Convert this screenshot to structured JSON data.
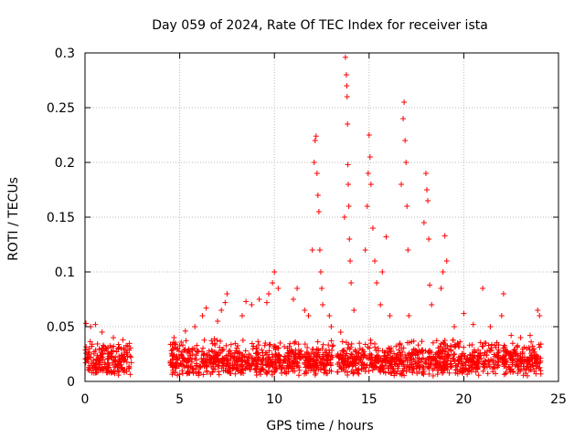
{
  "chart_data": {
    "type": "scatter",
    "title": "Day 059 of 2024, Rate Of TEC Index for receiver ista",
    "xlabel": "GPS time / hours",
    "ylabel": "ROTI / TECUs",
    "xlim": [
      0,
      25
    ],
    "ylim": [
      0,
      0.3
    ],
    "x_ticks": [
      0,
      5,
      10,
      15,
      20,
      25
    ],
    "x_tick_labels": [
      "0",
      "5",
      "10",
      "15",
      "20",
      "25"
    ],
    "y_ticks": [
      0,
      0.05,
      0.1,
      0.15,
      0.2,
      0.25,
      0.3
    ],
    "y_tick_labels": [
      "0",
      "0.05",
      "0.1",
      "0.15",
      "0.2",
      "0.25",
      "0.3"
    ],
    "grid": true,
    "marker": "+",
    "color": "#ff0000",
    "series": [
      {
        "name": "ROTI",
        "coverage_hours": [
          [
            0.0,
            2.45
          ],
          [
            4.5,
            13.1
          ],
          [
            13.3,
            24.1
          ]
        ],
        "baseline_range": [
          0.005,
          0.035
        ],
        "points": [
          [
            0.05,
            0.053
          ],
          [
            0.3,
            0.05
          ],
          [
            0.55,
            0.052
          ],
          [
            0.9,
            0.045
          ],
          [
            1.5,
            0.04
          ],
          [
            2.0,
            0.038
          ],
          [
            4.7,
            0.04
          ],
          [
            5.3,
            0.046
          ],
          [
            5.8,
            0.05
          ],
          [
            6.2,
            0.06
          ],
          [
            6.4,
            0.067
          ],
          [
            7.0,
            0.055
          ],
          [
            7.2,
            0.065
          ],
          [
            7.4,
            0.072
          ],
          [
            7.5,
            0.08
          ],
          [
            8.3,
            0.06
          ],
          [
            8.5,
            0.073
          ],
          [
            8.8,
            0.07
          ],
          [
            9.2,
            0.075
          ],
          [
            9.6,
            0.072
          ],
          [
            9.7,
            0.08
          ],
          [
            9.9,
            0.09
          ],
          [
            10.0,
            0.1
          ],
          [
            10.2,
            0.085
          ],
          [
            11.0,
            0.075
          ],
          [
            11.2,
            0.085
          ],
          [
            11.6,
            0.065
          ],
          [
            11.8,
            0.06
          ],
          [
            12.0,
            0.12
          ],
          [
            12.1,
            0.2
          ],
          [
            12.15,
            0.22
          ],
          [
            12.2,
            0.224
          ],
          [
            12.25,
            0.19
          ],
          [
            12.3,
            0.17
          ],
          [
            12.35,
            0.155
          ],
          [
            12.4,
            0.12
          ],
          [
            12.45,
            0.1
          ],
          [
            12.5,
            0.085
          ],
          [
            12.55,
            0.07
          ],
          [
            12.9,
            0.06
          ],
          [
            13.0,
            0.05
          ],
          [
            13.5,
            0.045
          ],
          [
            13.7,
            0.15
          ],
          [
            13.75,
            0.296
          ],
          [
            13.8,
            0.28
          ],
          [
            13.82,
            0.27
          ],
          [
            13.84,
            0.26
          ],
          [
            13.86,
            0.235
          ],
          [
            13.88,
            0.198
          ],
          [
            13.9,
            0.18
          ],
          [
            13.93,
            0.16
          ],
          [
            13.96,
            0.13
          ],
          [
            14.0,
            0.11
          ],
          [
            14.05,
            0.09
          ],
          [
            14.2,
            0.065
          ],
          [
            14.8,
            0.12
          ],
          [
            14.9,
            0.16
          ],
          [
            14.95,
            0.19
          ],
          [
            15.0,
            0.225
          ],
          [
            15.05,
            0.205
          ],
          [
            15.1,
            0.18
          ],
          [
            15.2,
            0.14
          ],
          [
            15.3,
            0.11
          ],
          [
            15.4,
            0.09
          ],
          [
            15.6,
            0.07
          ],
          [
            15.7,
            0.1
          ],
          [
            15.9,
            0.132
          ],
          [
            16.1,
            0.06
          ],
          [
            16.7,
            0.18
          ],
          [
            16.8,
            0.24
          ],
          [
            16.85,
            0.255
          ],
          [
            16.9,
            0.22
          ],
          [
            16.95,
            0.2
          ],
          [
            17.0,
            0.16
          ],
          [
            17.05,
            0.12
          ],
          [
            17.1,
            0.06
          ],
          [
            17.9,
            0.145
          ],
          [
            18.0,
            0.19
          ],
          [
            18.05,
            0.175
          ],
          [
            18.1,
            0.165
          ],
          [
            18.15,
            0.13
          ],
          [
            18.2,
            0.088
          ],
          [
            18.3,
            0.07
          ],
          [
            18.8,
            0.085
          ],
          [
            18.9,
            0.1
          ],
          [
            19.0,
            0.133
          ],
          [
            19.1,
            0.11
          ],
          [
            19.5,
            0.05
          ],
          [
            20.0,
            0.062
          ],
          [
            20.5,
            0.052
          ],
          [
            21.0,
            0.085
          ],
          [
            21.4,
            0.05
          ],
          [
            22.0,
            0.06
          ],
          [
            22.1,
            0.08
          ],
          [
            22.5,
            0.042
          ],
          [
            23.0,
            0.04
          ],
          [
            23.5,
            0.042
          ],
          [
            23.9,
            0.065
          ],
          [
            24.0,
            0.06
          ]
        ]
      }
    ]
  }
}
